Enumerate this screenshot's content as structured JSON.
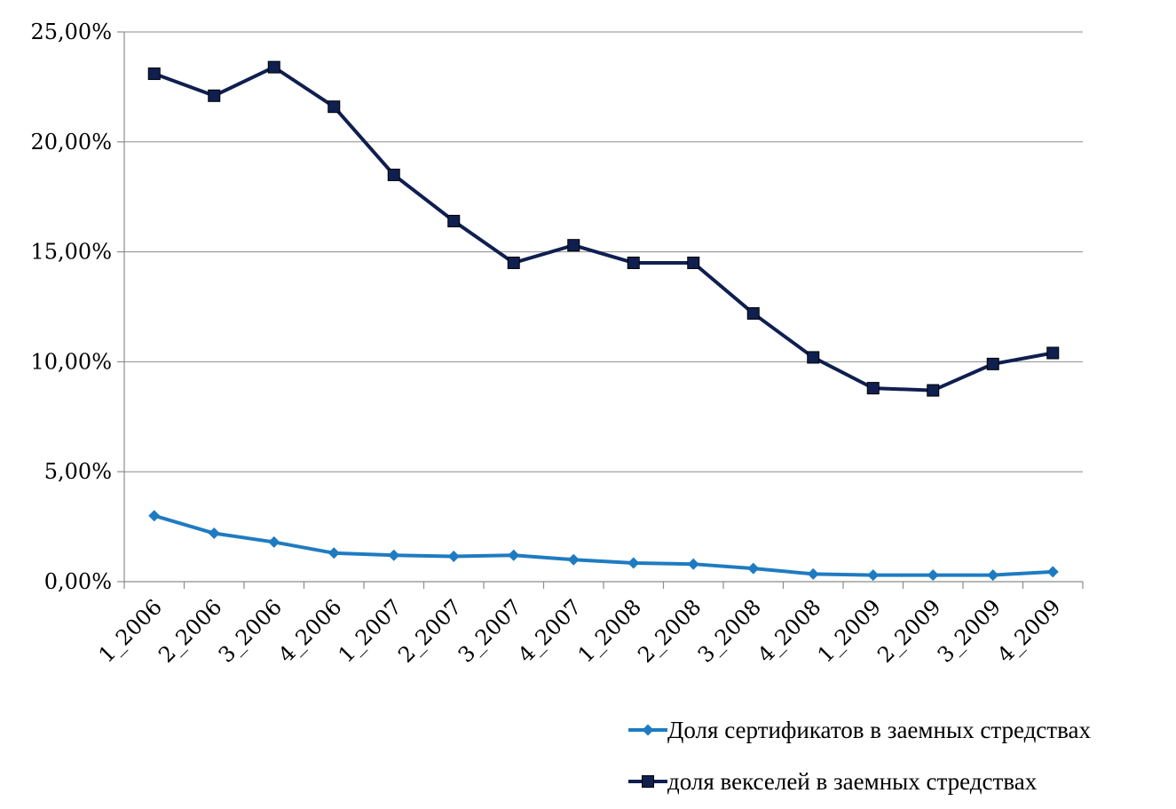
{
  "chart_data": {
    "type": "line",
    "categories": [
      "1_2006",
      "2_2006",
      "3_2006",
      "4_2006",
      "1_2007",
      "2_2007",
      "3_2007",
      "4_2007",
      "1_2008",
      "2_2008",
      "3_2008",
      "4_2008",
      "1_2009",
      "2_2009",
      "3_2009",
      "4_2009"
    ],
    "y_ticks": [
      "0,00%",
      "5,00%",
      "10,00%",
      "15,00%",
      "20,00%",
      "25,00%"
    ],
    "ylim": [
      0,
      25
    ],
    "grid": true,
    "legend_position": "bottom-right",
    "series": [
      {
        "name": "Доля сертификатов в заемных стредствах",
        "marker": "diamond",
        "color": "#1f7bc1",
        "values": [
          3.0,
          2.2,
          1.8,
          1.3,
          1.2,
          1.15,
          1.2,
          1.0,
          0.85,
          0.8,
          0.6,
          0.35,
          0.3,
          0.3,
          0.3,
          0.45
        ]
      },
      {
        "name": "доля векселей в заемных стредствах",
        "marker": "square",
        "color": "#0f1f50",
        "values": [
          23.1,
          22.1,
          23.4,
          21.6,
          18.5,
          16.4,
          14.5,
          15.3,
          14.5,
          14.5,
          12.2,
          10.2,
          8.8,
          8.7,
          9.9,
          10.4
        ]
      }
    ]
  }
}
